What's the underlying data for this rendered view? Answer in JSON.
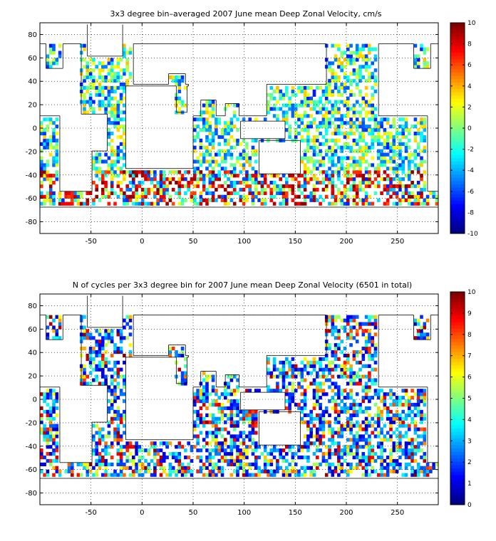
{
  "chart_data": [
    {
      "type": "heatmap",
      "title": "3x3 degree bin–averaged 2007 June mean Deep Zonal Velocity, cm/s",
      "xlim": [
        -100,
        290
      ],
      "ylim": [
        -90,
        90
      ],
      "xticks": [
        -50,
        0,
        50,
        100,
        150,
        200,
        250
      ],
      "yticks": [
        -80,
        -60,
        -40,
        -20,
        0,
        20,
        40,
        60,
        80
      ],
      "grid": "dotted",
      "bin_size_deg": 3,
      "colorbar": {
        "min": -10,
        "max": 10,
        "ticks": [
          -10,
          -8,
          -6,
          -4,
          -2,
          0,
          2,
          4,
          6,
          8,
          10
        ],
        "colormap": "jet",
        "placement": "right"
      }
    },
    {
      "type": "heatmap",
      "title": "N of cycles per 3x3 degree bin for 2007 June mean Deep Zonal Velocity (6501 in total)",
      "xlim": [
        -100,
        290
      ],
      "ylim": [
        -90,
        90
      ],
      "xticks": [
        -50,
        0,
        50,
        100,
        150,
        200,
        250
      ],
      "yticks": [
        -80,
        -60,
        -40,
        -20,
        0,
        20,
        40,
        60,
        80
      ],
      "grid": "dotted",
      "bin_size_deg": 3,
      "total_cycles": 6501,
      "colorbar": {
        "min": 0,
        "max": 10,
        "ticks": [
          0,
          1,
          2,
          3,
          4,
          5,
          6,
          7,
          8,
          9,
          10
        ],
        "colormap": "jet",
        "placement": "right"
      }
    }
  ]
}
